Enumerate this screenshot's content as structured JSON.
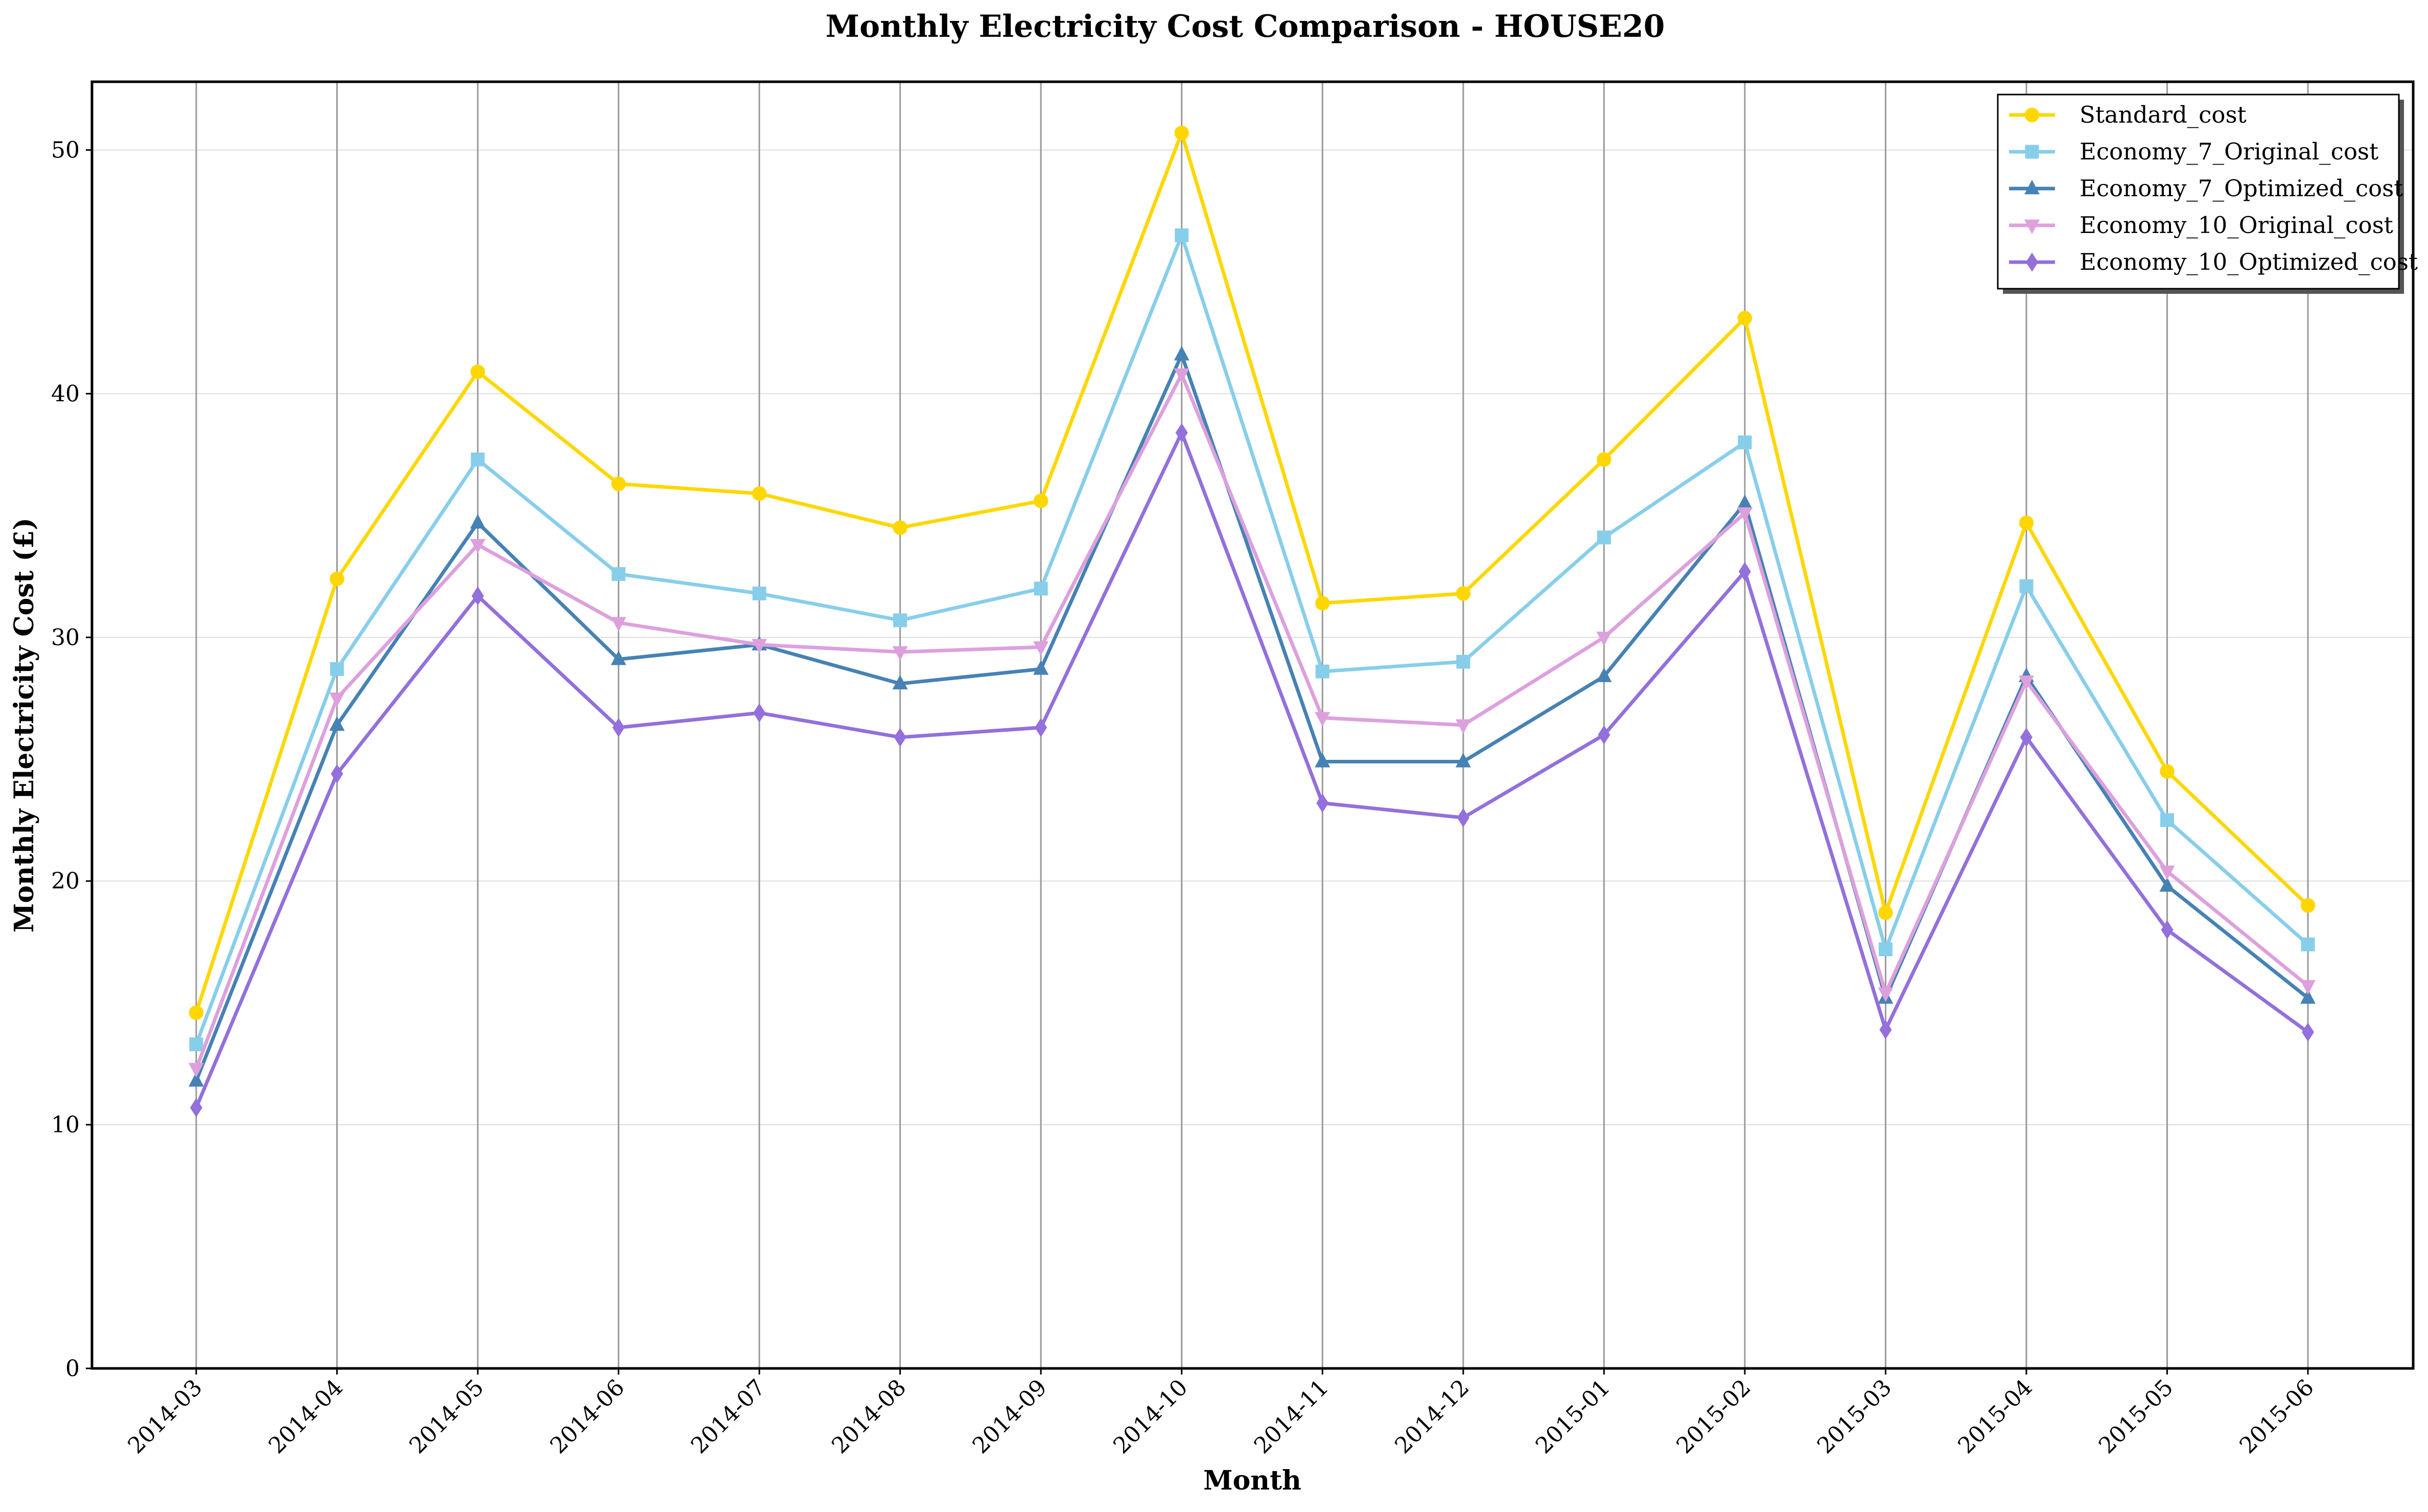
{
  "chart_data": {
    "type": "line",
    "title": "Monthly Electricity Cost Comparison - HOUSE20",
    "xlabel": "Month",
    "ylabel": "Monthly Electricity Cost (£)",
    "categories": [
      "2014-03",
      "2014-04",
      "2014-05",
      "2014-06",
      "2014-07",
      "2014-08",
      "2014-09",
      "2014-10",
      "2014-11",
      "2014-12",
      "2015-01",
      "2015-02",
      "2015-03",
      "2015-04",
      "2015-05",
      "2015-06"
    ],
    "ylim": [
      0,
      52.8
    ],
    "yticks": [
      0,
      10,
      20,
      30,
      40,
      50
    ],
    "grid": "horizontal",
    "legend_position": "top-right",
    "series": [
      {
        "name": "Standard_cost",
        "color": "#FFD700",
        "marker": "circle",
        "values": [
          14.6,
          32.4,
          40.9,
          36.3,
          35.9,
          34.5,
          35.6,
          50.7,
          31.4,
          31.8,
          37.3,
          43.1,
          18.7,
          34.7,
          24.5,
          19.0
        ]
      },
      {
        "name": "Economy_7_Original_cost",
        "color": "#87CEEB",
        "marker": "square",
        "values": [
          13.3,
          28.7,
          37.3,
          32.6,
          31.8,
          30.7,
          32.0,
          46.5,
          28.6,
          29.0,
          34.1,
          38.0,
          17.2,
          32.1,
          22.5,
          17.4
        ]
      },
      {
        "name": "Economy_7_Optimized_cost",
        "color": "#4682B4",
        "marker": "triangle-up",
        "values": [
          11.8,
          26.4,
          34.7,
          29.1,
          29.7,
          28.1,
          28.7,
          41.6,
          24.9,
          24.9,
          28.4,
          35.5,
          15.2,
          28.4,
          19.8,
          15.2
        ]
      },
      {
        "name": "Economy_10_Original_cost",
        "color": "#DDA0DD",
        "marker": "triangle-down",
        "values": [
          12.3,
          27.5,
          33.8,
          30.6,
          29.7,
          29.4,
          29.6,
          40.8,
          26.7,
          26.4,
          30.0,
          35.1,
          15.4,
          28.2,
          20.4,
          15.7
        ]
      },
      {
        "name": "Economy_10_Optimized_cost",
        "color": "#9370DB",
        "marker": "diamond",
        "values": [
          10.7,
          24.4,
          31.7,
          26.3,
          26.9,
          25.9,
          26.3,
          38.4,
          23.2,
          22.6,
          26.0,
          32.7,
          13.9,
          25.9,
          18.0,
          13.8
        ]
      }
    ]
  }
}
